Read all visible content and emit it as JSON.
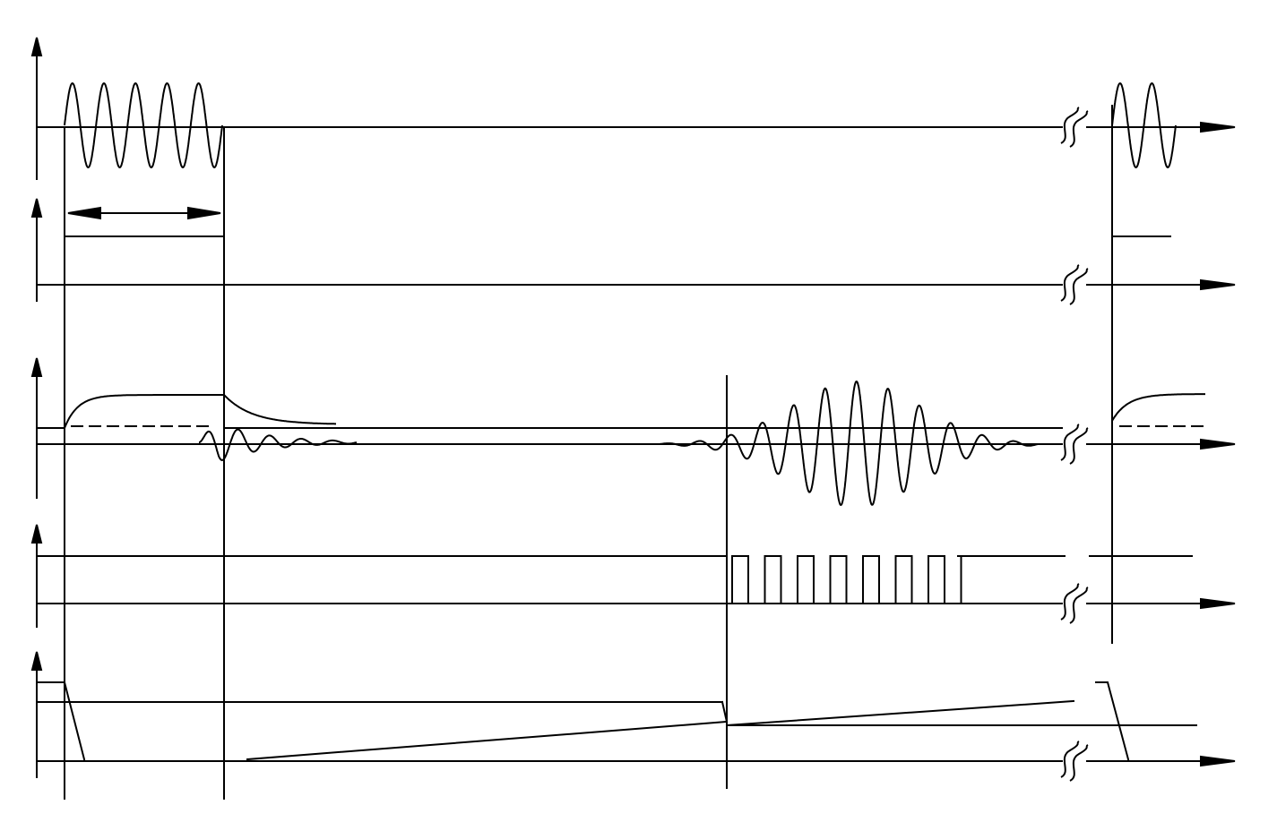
{
  "colors": {
    "ink": "#000000",
    "background": "#ffffff"
  },
  "diagram": {
    "type": "timing-diagram",
    "traces": [
      {
        "name": "transmit-burst",
        "shape": "sine-burst"
      },
      {
        "name": "gate-pulse",
        "shape": "rect-pulse"
      },
      {
        "name": "receive-signal",
        "shape": "decay-and-echo"
      },
      {
        "name": "comparator-pulses",
        "shape": "pulse-train",
        "pulse_count": 7
      },
      {
        "name": "ramp-voltage",
        "shape": "sawtooth-ramp"
      }
    ],
    "axis_break_symbol": "double-s",
    "icons": [
      "up-arrow-icon",
      "right-arrow-icon",
      "double-arrow-icon",
      "axis-break-icon"
    ]
  }
}
